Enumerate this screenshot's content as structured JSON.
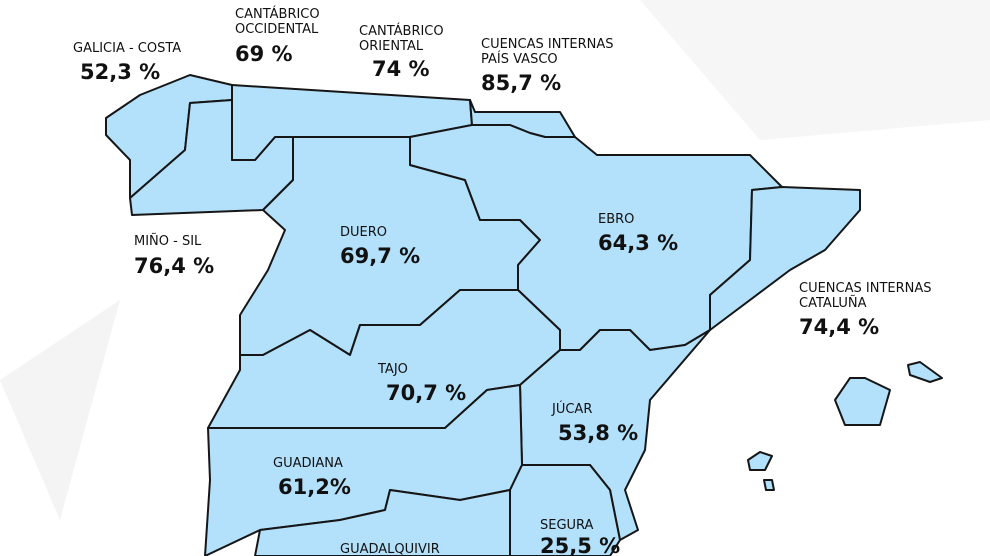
{
  "regions": [
    {
      "name": [
        "GALICIA - COSTA"
      ],
      "value": "52,3 %"
    },
    {
      "name": [
        "CANTÁBRICO",
        "OCCIDENTAL"
      ],
      "value": "69 %"
    },
    {
      "name": [
        "CANTÁBRICO",
        "ORIENTAL"
      ],
      "value": "74 %"
    },
    {
      "name": [
        "CUENCAS INTERNAS",
        "PAÍS VASCO"
      ],
      "value": "85,7 %"
    },
    {
      "name": [
        "MIÑO - SIL"
      ],
      "value": "76,4 %"
    },
    {
      "name": [
        "DUERO"
      ],
      "value": "69,7 %"
    },
    {
      "name": [
        "EBRO"
      ],
      "value": "64,3 %"
    },
    {
      "name": [
        "CUENCAS INTERNAS",
        "CATALUÑA"
      ],
      "value": "74,4 %"
    },
    {
      "name": [
        "TAJO"
      ],
      "value": "70,7 %"
    },
    {
      "name": [
        "JÚCAR"
      ],
      "value": "53,8 %"
    },
    {
      "name": [
        "GUADIANA"
      ],
      "value": "61,2%"
    },
    {
      "name": [
        "SEGURA"
      ],
      "value": "25,5 %"
    },
    {
      "name": [
        "GUADALQUIVIR"
      ],
      "value": null
    }
  ]
}
